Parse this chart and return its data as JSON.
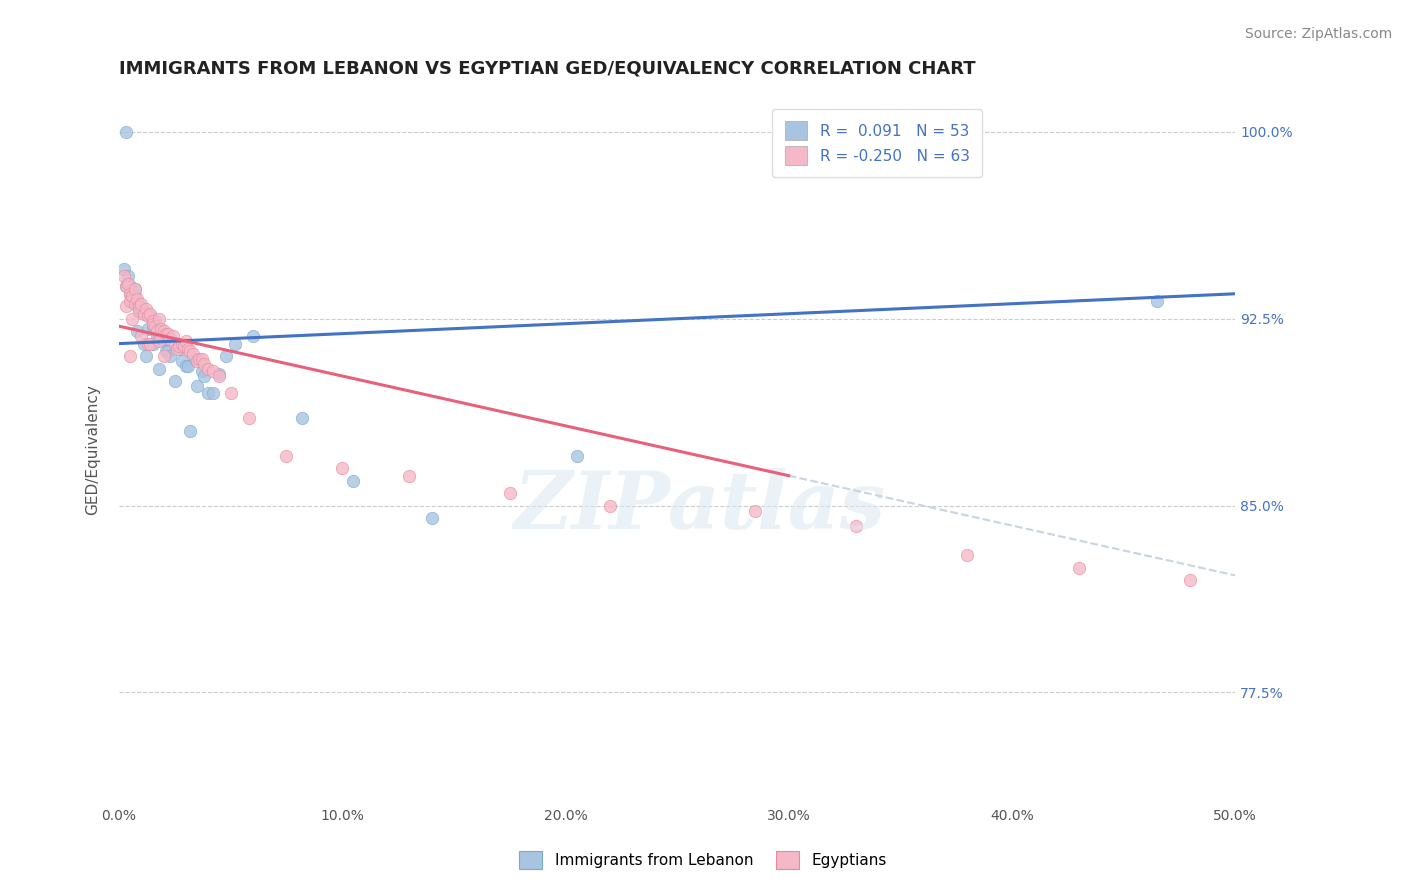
{
  "title": "IMMIGRANTS FROM LEBANON VS EGYPTIAN GED/EQUIVALENCY CORRELATION CHART",
  "source": "Source: ZipAtlas.com",
  "xlabel": "",
  "ylabel": "GED/Equivalency",
  "x_min": 0.0,
  "x_max": 50.0,
  "y_min": 73.0,
  "y_max": 101.5,
  "yticks": [
    77.5,
    85.0,
    92.5,
    100.0
  ],
  "ytick_labels": [
    "77.5%",
    "85.0%",
    "92.5%",
    "100.0%"
  ],
  "xticks": [
    0.0,
    10.0,
    20.0,
    30.0,
    40.0,
    50.0
  ],
  "xtick_labels": [
    "0.0%",
    "10.0%",
    "20.0%",
    "30.0%",
    "40.0%",
    "50.0%"
  ],
  "lebanon_x": [
    0.2,
    0.3,
    0.3,
    0.4,
    0.5,
    0.5,
    0.6,
    0.6,
    0.7,
    0.7,
    0.8,
    0.8,
    0.9,
    0.9,
    1.0,
    1.1,
    1.1,
    1.2,
    1.2,
    1.3,
    1.4,
    1.5,
    1.5,
    1.6,
    1.7,
    1.8,
    1.9,
    2.0,
    2.1,
    2.2,
    2.3,
    2.5,
    2.6,
    2.7,
    2.8,
    3.0,
    3.1,
    3.2,
    3.4,
    3.5,
    3.7,
    3.8,
    4.0,
    4.2,
    4.5,
    4.8,
    5.2,
    6.0,
    8.2,
    10.5,
    14.0,
    20.5,
    46.5
  ],
  "lebanon_y": [
    94.5,
    100.0,
    93.8,
    94.2,
    93.5,
    93.8,
    93.2,
    93.6,
    93.4,
    93.7,
    93.1,
    92.0,
    93.0,
    92.9,
    92.9,
    92.8,
    91.5,
    92.7,
    91.0,
    92.1,
    92.6,
    92.2,
    91.5,
    92.4,
    91.8,
    90.5,
    91.7,
    91.6,
    91.2,
    91.2,
    91.0,
    90.0,
    91.4,
    91.3,
    90.8,
    90.6,
    90.6,
    88.0,
    90.9,
    89.8,
    90.4,
    90.2,
    89.5,
    89.5,
    90.3,
    91.0,
    91.5,
    91.8,
    88.5,
    86.0,
    84.5,
    87.0,
    93.2
  ],
  "egypt_x": [
    0.2,
    0.3,
    0.3,
    0.4,
    0.5,
    0.5,
    0.5,
    0.6,
    0.6,
    0.7,
    0.7,
    0.8,
    0.9,
    0.9,
    1.0,
    1.0,
    1.1,
    1.2,
    1.3,
    1.3,
    1.4,
    1.4,
    1.5,
    1.5,
    1.6,
    1.7,
    1.8,
    1.8,
    1.9,
    2.0,
    2.0,
    2.1,
    2.2,
    2.3,
    2.4,
    2.5,
    2.6,
    2.7,
    2.8,
    2.9,
    3.0,
    3.1,
    3.2,
    3.3,
    3.5,
    3.6,
    3.7,
    3.8,
    4.0,
    4.2,
    4.5,
    5.0,
    5.8,
    7.5,
    10.0,
    13.0,
    17.5,
    22.0,
    28.5,
    33.0,
    38.0,
    43.0,
    48.0
  ],
  "egypt_y": [
    94.2,
    93.8,
    93.0,
    93.9,
    93.5,
    93.2,
    91.0,
    93.4,
    92.5,
    93.7,
    93.1,
    93.3,
    93.0,
    92.8,
    93.1,
    91.8,
    92.7,
    92.9,
    92.6,
    91.5,
    92.7,
    91.5,
    92.4,
    92.3,
    92.2,
    92.0,
    92.5,
    91.6,
    92.1,
    92.0,
    91.0,
    91.9,
    91.9,
    91.7,
    91.8,
    91.5,
    91.3,
    91.4,
    91.5,
    91.4,
    91.6,
    91.3,
    91.2,
    91.1,
    90.8,
    90.9,
    90.9,
    90.7,
    90.5,
    90.4,
    90.2,
    89.5,
    88.5,
    87.0,
    86.5,
    86.2,
    85.5,
    85.0,
    84.8,
    84.2,
    83.0,
    82.5,
    82.0
  ],
  "lebanon_color": "#a8c4e0",
  "lebanon_edge": "#7aaad0",
  "lebanon_trend": "#4472c4",
  "egypt_color": "#f4b8c8",
  "egypt_edge": "#e8889c",
  "egypt_trend": "#e8607a",
  "egypt_dash_color": "#c8d4e0",
  "R_lebanon": "0.091",
  "N_lebanon": "53",
  "R_egypt": "-0.250",
  "N_egypt": "63",
  "background_color": "#ffffff",
  "title_fontsize": 13,
  "tick_fontsize": 10,
  "legend_fontsize": 11,
  "source_fontsize": 10
}
